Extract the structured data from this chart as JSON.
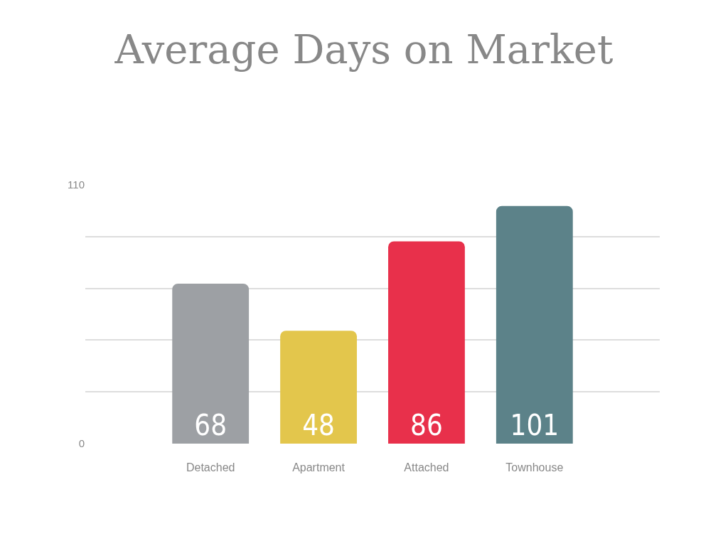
{
  "chart_data": {
    "type": "bar",
    "title": "Average Days on Market",
    "categories": [
      "Detached",
      "Apartment",
      "Attached",
      "Townhouse"
    ],
    "values": [
      68,
      48,
      86,
      101
    ],
    "colors": [
      "#9da0a4",
      "#e3c64c",
      "#e8304b",
      "#5c8289"
    ],
    "ylim": [
      0,
      110
    ],
    "yticks": [
      0,
      {
        "value": 22,
        "label": null
      },
      {
        "value": 44,
        "label": null
      },
      {
        "value": 66,
        "label": null
      },
      {
        "value": 88,
        "label": null
      },
      110
    ],
    "grid": "y",
    "data_labels": true
  }
}
